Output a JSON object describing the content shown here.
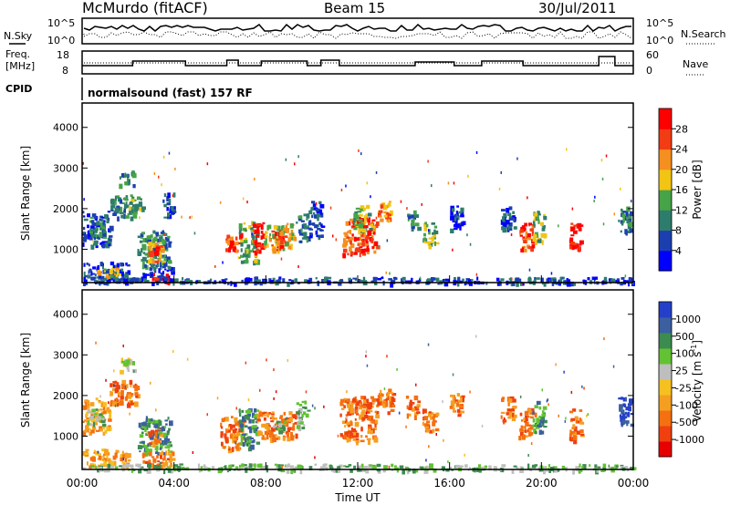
{
  "header": {
    "station": "McMurdo (fitACF)",
    "beam": "Beam 15",
    "date": "30/Jul/2011"
  },
  "noise_panel": {
    "left_label": "N.Sky",
    "right_label": "N.Search",
    "left_ticks": [
      "10^5",
      "10^0"
    ],
    "right_ticks": [
      "10^5",
      "10^0"
    ]
  },
  "freq_panel": {
    "left_label_1": "Freq.",
    "left_label_2": "[MHz]",
    "right_label": "Nave",
    "left_ticks": [
      "18",
      "8"
    ],
    "right_ticks": [
      "60",
      "0"
    ]
  },
  "cpid": {
    "label": "CPID",
    "text": "normalsound (fast) 157 RF"
  },
  "colors": {
    "frame": "#000000"
  },
  "chart_data": [
    {
      "type": "heatmap",
      "panel": "power",
      "ylabel": "Slant Range [km]",
      "yticks": [
        "1000",
        "2000",
        "3000",
        "4000"
      ],
      "ylim": [
        180,
        4600
      ],
      "xlim": [
        0,
        24
      ],
      "colorbar": {
        "label": "Power [dB]",
        "ticks": [
          "4",
          "8",
          "12",
          "16",
          "20",
          "24",
          "28"
        ],
        "colors": [
          "#0000ff",
          "#1c3fb0",
          "#2e7c6c",
          "#46a347",
          "#f2c414",
          "#f58f1f",
          "#f23c14",
          "#ff0000"
        ]
      },
      "patches": [
        {
          "t0": 0.0,
          "t1": 1.2,
          "r0": 1100,
          "r1": 1950,
          "level": 1
        },
        {
          "t0": 0.3,
          "t1": 1.0,
          "r0": 1300,
          "r1": 1800,
          "level": 2
        },
        {
          "t0": 0.0,
          "t1": 2.0,
          "r0": 250,
          "r1": 700,
          "level": 1
        },
        {
          "t0": 0.6,
          "t1": 1.6,
          "r0": 350,
          "r1": 550,
          "level": 4
        },
        {
          "t0": 1.2,
          "t1": 2.3,
          "r0": 1800,
          "r1": 2350,
          "level": 2
        },
        {
          "t0": 1.6,
          "t1": 2.2,
          "r0": 2600,
          "r1": 2950,
          "level": 2
        },
        {
          "t0": 1.8,
          "t1": 2.6,
          "r0": 2000,
          "r1": 2300,
          "level": 3
        },
        {
          "t0": 2.4,
          "t1": 3.8,
          "r0": 600,
          "r1": 1500,
          "level": 2
        },
        {
          "t0": 2.8,
          "t1": 3.5,
          "r0": 700,
          "r1": 1200,
          "level": 5
        },
        {
          "t0": 3.0,
          "t1": 3.3,
          "r0": 900,
          "r1": 1100,
          "level": 7
        },
        {
          "t0": 2.6,
          "t1": 3.9,
          "r0": 250,
          "r1": 650,
          "level": 1
        },
        {
          "t0": 3.0,
          "t1": 3.8,
          "r0": 200,
          "r1": 450,
          "level": 7
        },
        {
          "t0": 3.5,
          "t1": 4.0,
          "r0": 1800,
          "r1": 2400,
          "level": 1
        },
        {
          "t0": 6.2,
          "t1": 6.9,
          "r0": 900,
          "r1": 1400,
          "level": 6
        },
        {
          "t0": 6.8,
          "t1": 7.6,
          "r0": 700,
          "r1": 1700,
          "level": 3
        },
        {
          "t0": 7.4,
          "t1": 7.9,
          "r0": 900,
          "r1": 1700,
          "level": 7
        },
        {
          "t0": 7.9,
          "t1": 9.2,
          "r0": 1000,
          "r1": 1650,
          "level": 4
        },
        {
          "t0": 8.2,
          "t1": 8.8,
          "r0": 1000,
          "r1": 1500,
          "level": 6
        },
        {
          "t0": 9.3,
          "t1": 9.8,
          "r0": 1200,
          "r1": 1900,
          "level": 2
        },
        {
          "t0": 9.8,
          "t1": 10.4,
          "r0": 1300,
          "r1": 2200,
          "level": 1
        },
        {
          "t0": 11.3,
          "t1": 12.8,
          "r0": 900,
          "r1": 1800,
          "level": 6
        },
        {
          "t0": 11.8,
          "t1": 12.6,
          "r0": 1500,
          "r1": 2100,
          "level": 3
        },
        {
          "t0": 12.8,
          "t1": 13.5,
          "r0": 1700,
          "r1": 2200,
          "level": 5
        },
        {
          "t0": 14.1,
          "t1": 14.6,
          "r0": 1500,
          "r1": 2000,
          "level": 2
        },
        {
          "t0": 14.8,
          "t1": 15.4,
          "r0": 1100,
          "r1": 1700,
          "level": 3
        },
        {
          "t0": 16.0,
          "t1": 16.6,
          "r0": 1500,
          "r1": 2100,
          "level": 1
        },
        {
          "t0": 18.2,
          "t1": 18.8,
          "r0": 1500,
          "r1": 2100,
          "level": 1
        },
        {
          "t0": 19.0,
          "t1": 19.6,
          "r0": 1000,
          "r1": 1700,
          "level": 6
        },
        {
          "t0": 19.6,
          "t1": 20.1,
          "r0": 1200,
          "r1": 1950,
          "level": 3
        },
        {
          "t0": 21.2,
          "t1": 21.7,
          "r0": 1000,
          "r1": 1700,
          "level": 7
        },
        {
          "t0": 23.3,
          "t1": 23.9,
          "r0": 1400,
          "r1": 2100,
          "level": 2
        },
        {
          "t0": 0.0,
          "t1": 24.0,
          "r0": 180,
          "r1": 330,
          "level": 1
        }
      ]
    },
    {
      "type": "heatmap",
      "panel": "velocity",
      "ylabel": "Slant Range [km]",
      "yticks": [
        "1000",
        "2000",
        "3000",
        "4000"
      ],
      "ylim": [
        180,
        4600
      ],
      "xlim": [
        0,
        24
      ],
      "xticks": [
        "00:00",
        "04:00",
        "08:00",
        "12:00",
        "16:00",
        "20:00",
        "00:00"
      ],
      "xlabel": "Time UT",
      "colorbar": {
        "label": "Velocity [m s-1]",
        "ticks": [
          "1000",
          "500",
          "100",
          "25",
          "-25",
          "-100",
          "-500",
          "-1000"
        ],
        "colors": [
          "#2540c8",
          "#3c5fa0",
          "#3c8c50",
          "#62c232",
          "#bebebe",
          "#f5c020",
          "#f59f20",
          "#f57010",
          "#f04010",
          "#e60000"
        ]
      },
      "patches": [
        {
          "t0": 0.0,
          "t1": 1.2,
          "r0": 1100,
          "r1": 1950,
          "level": 6
        },
        {
          "t0": 0.2,
          "t1": 0.9,
          "r0": 1300,
          "r1": 1700,
          "level": 3
        },
        {
          "t0": 0.0,
          "t1": 2.0,
          "r0": 250,
          "r1": 700,
          "level": 6
        },
        {
          "t0": 1.2,
          "t1": 2.4,
          "r0": 1800,
          "r1": 2400,
          "level": 7
        },
        {
          "t0": 1.6,
          "t1": 2.2,
          "r0": 2600,
          "r1": 2950,
          "level": 4
        },
        {
          "t0": 2.4,
          "t1": 3.8,
          "r0": 600,
          "r1": 1500,
          "level": 2
        },
        {
          "t0": 2.8,
          "t1": 3.4,
          "r0": 800,
          "r1": 1200,
          "level": 7
        },
        {
          "t0": 2.6,
          "t1": 3.9,
          "r0": 250,
          "r1": 650,
          "level": 7
        },
        {
          "t0": 6.0,
          "t1": 7.0,
          "r0": 700,
          "r1": 1500,
          "level": 7
        },
        {
          "t0": 6.8,
          "t1": 7.6,
          "r0": 700,
          "r1": 1700,
          "level": 2
        },
        {
          "t0": 7.6,
          "t1": 9.3,
          "r0": 950,
          "r1": 1650,
          "level": 7
        },
        {
          "t0": 8.3,
          "t1": 8.8,
          "r0": 1100,
          "r1": 1400,
          "level": 3
        },
        {
          "t0": 9.3,
          "t1": 9.8,
          "r0": 1200,
          "r1": 1900,
          "level": 3
        },
        {
          "t0": 11.2,
          "t1": 12.8,
          "r0": 900,
          "r1": 2000,
          "level": 7
        },
        {
          "t0": 12.8,
          "t1": 13.5,
          "r0": 1600,
          "r1": 2200,
          "level": 7
        },
        {
          "t0": 14.1,
          "t1": 14.6,
          "r0": 1500,
          "r1": 2000,
          "level": 7
        },
        {
          "t0": 14.8,
          "t1": 15.4,
          "r0": 1100,
          "r1": 1700,
          "level": 7
        },
        {
          "t0": 16.0,
          "t1": 16.6,
          "r0": 1500,
          "r1": 2100,
          "level": 7
        },
        {
          "t0": 18.2,
          "t1": 18.8,
          "r0": 1400,
          "r1": 2000,
          "level": 7
        },
        {
          "t0": 19.0,
          "t1": 19.7,
          "r0": 1000,
          "r1": 1700,
          "level": 7
        },
        {
          "t0": 19.6,
          "t1": 20.1,
          "r0": 1100,
          "r1": 1900,
          "level": 2
        },
        {
          "t0": 21.2,
          "t1": 21.7,
          "r0": 900,
          "r1": 1700,
          "level": 7
        },
        {
          "t0": 23.3,
          "t1": 23.9,
          "r0": 1300,
          "r1": 2000,
          "level": 0
        },
        {
          "t0": 0.0,
          "t1": 24.0,
          "r0": 180,
          "r1": 330,
          "level": 3
        }
      ]
    }
  ]
}
